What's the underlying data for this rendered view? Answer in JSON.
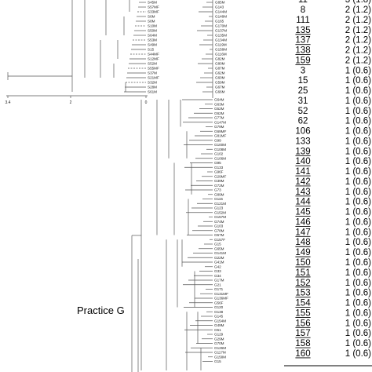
{
  "top_tree": {
    "leaves": [
      "S38M",
      "S45M",
      "S57MF",
      "S33MF",
      "S6M",
      "S8M",
      "S10M",
      "S50M",
      "S64M",
      "S53M",
      "S49M",
      "S15",
      "S44MF",
      "S12MF",
      "S52M",
      "S55MF",
      "S37M",
      "S21MF",
      "S32M",
      "S28M",
      "S61M"
    ],
    "axis_ticks": [
      "3.4",
      "2",
      "0"
    ]
  },
  "middle_labels": [
    "G84M",
    "G85M",
    "G143",
    "G144M",
    "G148M",
    "G165",
    "G170M",
    "G137M",
    "G135M",
    "G134M",
    "G119M",
    "G158M",
    "G116M",
    "G82M",
    "G80M",
    "G87M",
    "G62M",
    "G60M",
    "G59M",
    "G67M",
    "G66M"
  ],
  "practice_label": "Practice G",
  "bottom_tree": {
    "leaves": [
      "G64M",
      "G63M",
      "G52M",
      "G62M",
      "G77M",
      "G147M",
      "G79M",
      "G69MF",
      "G81MF",
      "G99",
      "G100M",
      "G108M",
      "G102",
      "G106M",
      "G95",
      "G133",
      "G96F",
      "G29MF",
      "G39M",
      "G72M",
      "G73",
      "G89M",
      "G115",
      "G121M",
      "G123",
      "G152M",
      "G157M",
      "G74M",
      "G103",
      "G78M",
      "G57M",
      "G157F",
      "G15",
      "G65M",
      "G141M",
      "G22M",
      "G41M",
      "G42",
      "G33",
      "G34",
      "G17M",
      "G21",
      "G171",
      "G131MF",
      "G136MF",
      "G56F",
      "G120",
      "G138",
      "G145",
      "G154M",
      "G49M",
      "G51",
      "G129",
      "G29M",
      "G70M",
      "G126M",
      "G117M",
      "G158M",
      "G15"
    ]
  },
  "st_table": {
    "partial_top_row": {
      "st": "11",
      "count": "3 (1.8)"
    },
    "rows": [
      {
        "st": "8",
        "count": "2 (1.2)",
        "underline": false
      },
      {
        "st": "111",
        "count": "2 (1.2)",
        "underline": false
      },
      {
        "st": "135",
        "count": "2 (1.2)",
        "underline": true
      },
      {
        "st": "137",
        "count": "2 (1.2)",
        "underline": true
      },
      {
        "st": "138",
        "count": "2 (1.2)",
        "underline": true
      },
      {
        "st": "159",
        "count": "2 (1.2)",
        "underline": true
      },
      {
        "st": "3",
        "count": "1 (0.6)",
        "underline": false
      },
      {
        "st": "15",
        "count": "1 (0.6)",
        "underline": false
      },
      {
        "st": "25",
        "count": "1 (0.6)",
        "underline": false
      },
      {
        "st": "31",
        "count": "1 (0.6)",
        "underline": false
      },
      {
        "st": "52",
        "count": "1 (0.6)",
        "underline": false
      },
      {
        "st": "62",
        "count": "1 (0.6)",
        "underline": false
      },
      {
        "st": "106",
        "count": "1 (0.6)",
        "underline": false
      },
      {
        "st": "133",
        "count": "1 (0.6)",
        "underline": false
      },
      {
        "st": "139",
        "count": "1 (0.6)",
        "underline": true
      },
      {
        "st": "140",
        "count": "1 (0.6)",
        "underline": true
      },
      {
        "st": "141",
        "count": "1 (0.6)",
        "underline": true
      },
      {
        "st": "142",
        "count": "1 (0.6)",
        "underline": true
      },
      {
        "st": "143",
        "count": "1 (0.6)",
        "underline": true
      },
      {
        "st": "144",
        "count": "1 (0.6)",
        "underline": true
      },
      {
        "st": "145",
        "count": "1 (0.6)",
        "underline": true
      },
      {
        "st": "146",
        "count": "1 (0.6)",
        "underline": true
      },
      {
        "st": "147",
        "count": "1 (0.6)",
        "underline": true
      },
      {
        "st": "148",
        "count": "1 (0.6)",
        "underline": true
      },
      {
        "st": "149",
        "count": "1 (0.6)",
        "underline": true
      },
      {
        "st": "150",
        "count": "1 (0.6)",
        "underline": true
      },
      {
        "st": "151",
        "count": "1 (0.6)",
        "underline": true
      },
      {
        "st": "152",
        "count": "1 (0.6)",
        "underline": true
      },
      {
        "st": "153",
        "count": "1 (0.6)",
        "underline": true
      },
      {
        "st": "154",
        "count": "1 (0.6)",
        "underline": true
      },
      {
        "st": "155",
        "count": "1 (0.6)",
        "underline": true
      },
      {
        "st": "156",
        "count": "1 (0.6)",
        "underline": true
      },
      {
        "st": "157",
        "count": "1 (0.6)",
        "underline": true
      },
      {
        "st": "158",
        "count": "1 (0.6)",
        "underline": true
      },
      {
        "st": "160",
        "count": "1 (0.6)",
        "underline": true
      }
    ]
  }
}
